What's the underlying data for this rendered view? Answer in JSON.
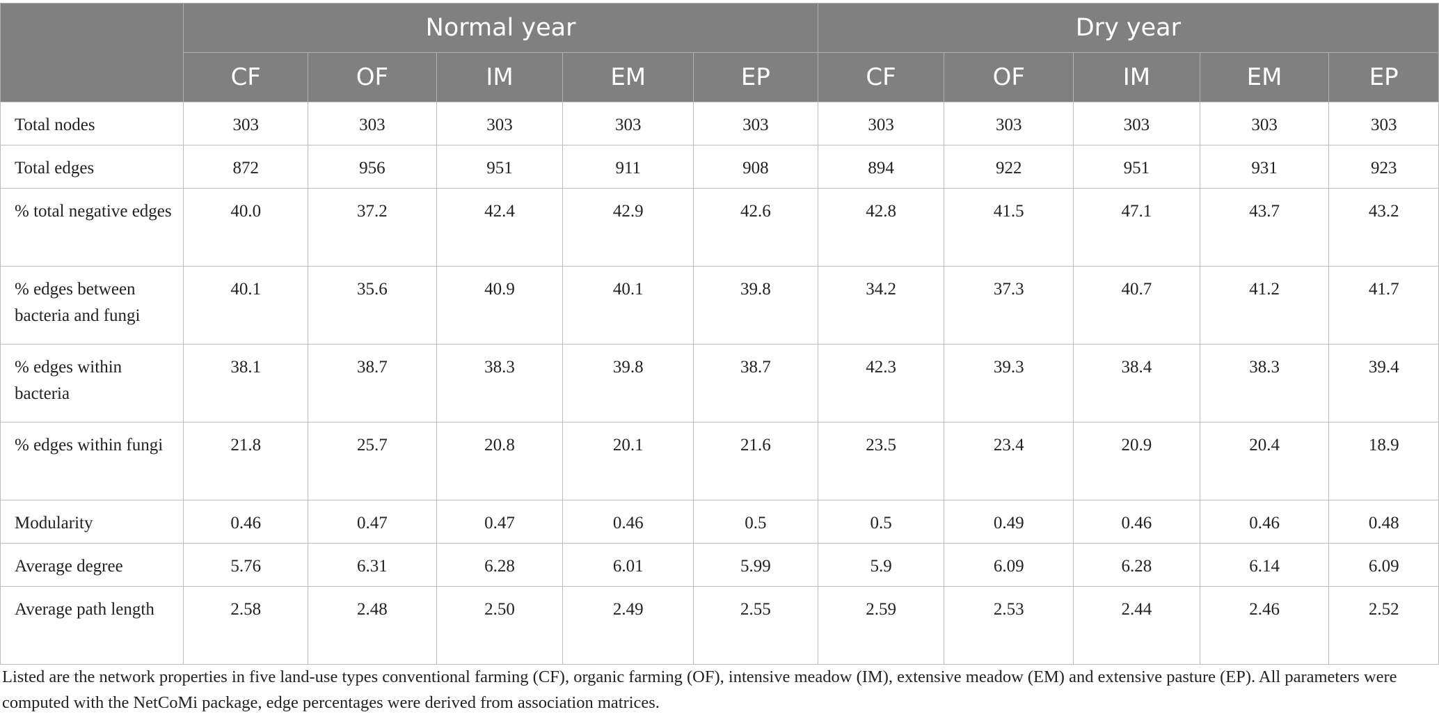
{
  "header": {
    "groups": [
      "Normal year",
      "Dry year"
    ],
    "columns": [
      "CF",
      "OF",
      "IM",
      "EM",
      "EP",
      "CF",
      "OF",
      "IM",
      "EM",
      "EP"
    ]
  },
  "rows": [
    {
      "label": "Total nodes",
      "values": [
        "303",
        "303",
        "303",
        "303",
        "303",
        "303",
        "303",
        "303",
        "303",
        "303"
      ]
    },
    {
      "label": "Total edges",
      "values": [
        "872",
        "956",
        "951",
        "911",
        "908",
        "894",
        "922",
        "951",
        "931",
        "923"
      ]
    },
    {
      "label": "% total negative edges",
      "values": [
        "40.0",
        "37.2",
        "42.4",
        "42.9",
        "42.6",
        "42.8",
        "41.5",
        "47.1",
        "43.7",
        "43.2"
      ]
    },
    {
      "label": "% edges between bacteria and fungi",
      "values": [
        "40.1",
        "35.6",
        "40.9",
        "40.1",
        "39.8",
        "34.2",
        "37.3",
        "40.7",
        "41.2",
        "41.7"
      ]
    },
    {
      "label": "% edges within bacteria",
      "values": [
        "38.1",
        "38.7",
        "38.3",
        "39.8",
        "38.7",
        "42.3",
        "39.3",
        "38.4",
        "38.3",
        "39.4"
      ]
    },
    {
      "label": "% edges within fungi",
      "values": [
        "21.8",
        "25.7",
        "20.8",
        "20.1",
        "21.6",
        "23.5",
        "23.4",
        "20.9",
        "20.4",
        "18.9"
      ]
    },
    {
      "label": "Modularity",
      "values": [
        "0.46",
        "0.47",
        "0.47",
        "0.46",
        "0.5",
        "0.5",
        "0.49",
        "0.46",
        "0.46",
        "0.48"
      ]
    },
    {
      "label": "Average degree",
      "values": [
        "5.76",
        "6.31",
        "6.28",
        "6.01",
        "5.99",
        "5.9",
        "6.09",
        "6.28",
        "6.14",
        "6.09"
      ]
    },
    {
      "label": "Average path length",
      "values": [
        "2.58",
        "2.48",
        "2.50",
        "2.49",
        "2.55",
        "2.59",
        "2.53",
        "2.44",
        "2.46",
        "2.52"
      ]
    }
  ],
  "footnote": "Listed are the network properties in five land-use types conventional farming (CF), organic farming (OF), intensive meadow (IM), extensive meadow (EM) and extensive pasture (EP). All parameters were computed with the NetCoMi package, edge percentages were derived from association matrices."
}
